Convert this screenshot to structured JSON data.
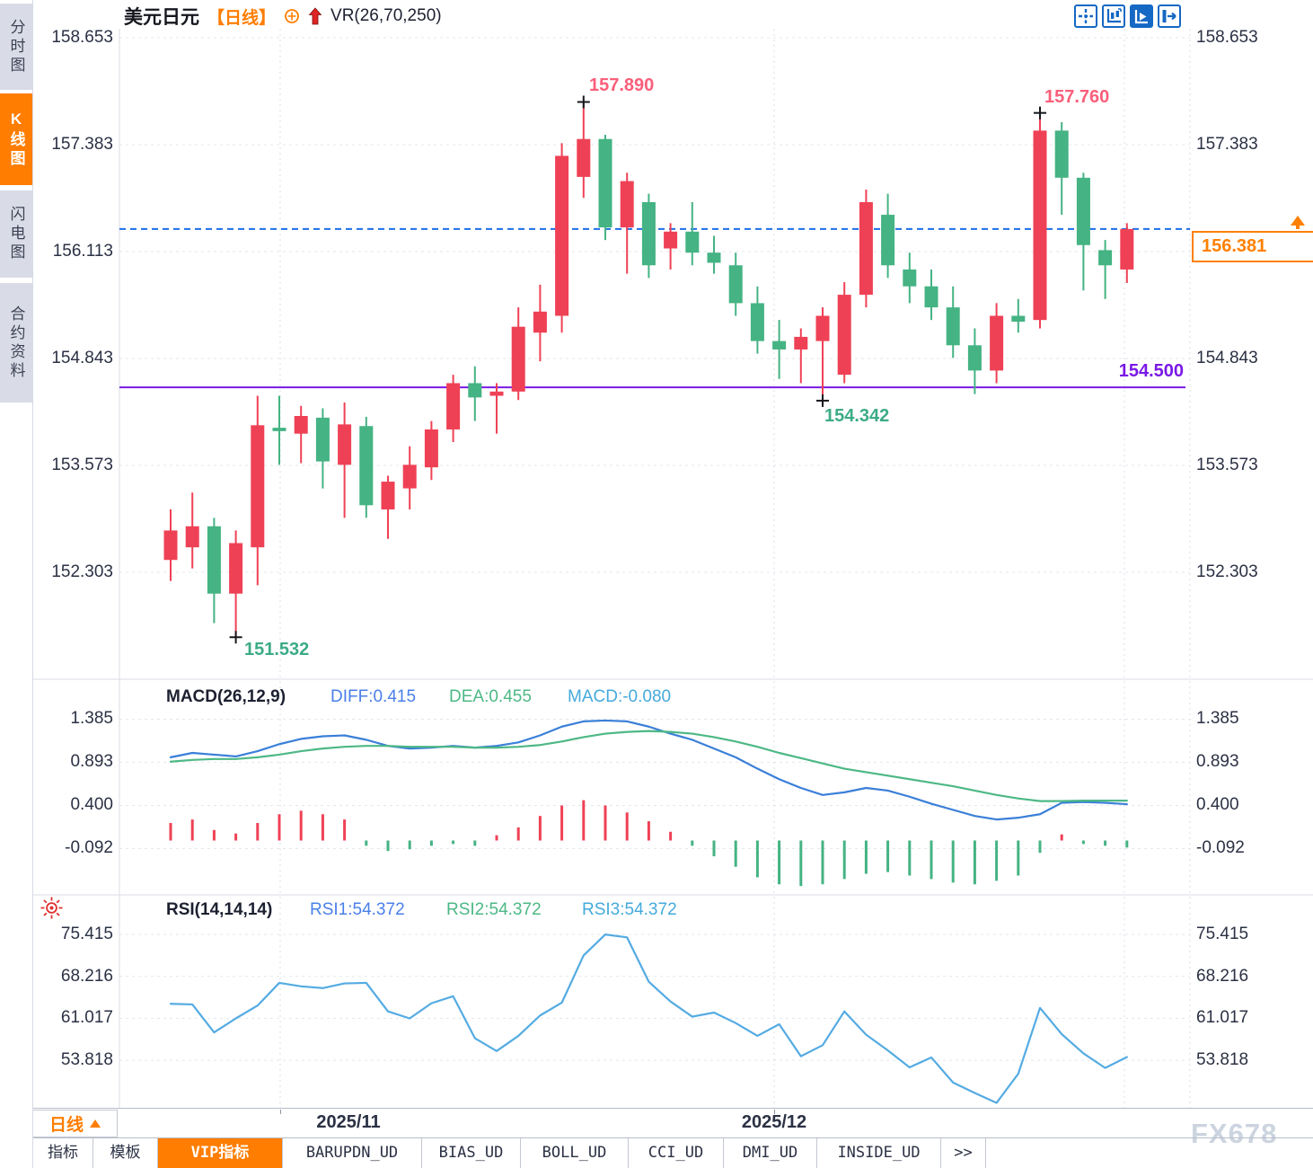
{
  "colors": {
    "accent_orange": "#ff7d00",
    "up": "#ef4155",
    "down": "#45b383",
    "toolbar_blue": "#1568c4",
    "purple": "#7a18e6",
    "dashed_blue": "#1d6ee8",
    "label_pink": "#fa5f7a",
    "label_green": "#3cab87"
  },
  "sidebar": {
    "items": [
      {
        "label": "分时图",
        "active": false
      },
      {
        "label": "K线图",
        "active": true
      },
      {
        "label": "闪电图",
        "active": false
      },
      {
        "label": "合约资料",
        "active": false
      }
    ]
  },
  "header": {
    "symbol": "美元日元",
    "period_tag": "【日线】",
    "vr_label": "VR(26,70,250)"
  },
  "toolbar": {
    "icons": [
      {
        "name": "pan-crosshair"
      },
      {
        "name": "axis-scale"
      },
      {
        "name": "auto-play-scale"
      },
      {
        "name": "jump-to-latest"
      }
    ]
  },
  "main_axis": {
    "ticks": [
      "158.653",
      "157.383",
      "156.113",
      "154.843",
      "153.573",
      "152.303"
    ]
  },
  "macd_panel": {
    "title": "MACD(26,12,9)",
    "diff_label": "DIFF:0.415",
    "dea_label": "DEA:0.455",
    "macd_label": "MACD:-0.080",
    "ticks": [
      "1.385",
      "0.893",
      "0.400",
      "-0.092"
    ]
  },
  "rsi_panel": {
    "title": "RSI(14,14,14)",
    "rsi1_label": "RSI1:54.372",
    "rsi2_label": "RSI2:54.372",
    "rsi3_label": "RSI3:54.372",
    "ticks": [
      "75.415",
      "68.216",
      "61.017",
      "53.818"
    ]
  },
  "annotations": [
    {
      "text": "157.890"
    },
    {
      "text": "157.760"
    },
    {
      "text": "151.532"
    },
    {
      "text": "154.342"
    }
  ],
  "levels": {
    "support": {
      "label": "154.500"
    },
    "current": {
      "label": "156.381"
    }
  },
  "x_axis": {
    "labels": [
      {
        "text": "2025/11",
        "x": 388
      },
      {
        "text": "2025/12",
        "x": 862
      }
    ],
    "gridlines": [
      312,
      862,
      1252
    ]
  },
  "period_selector": {
    "label": "日线"
  },
  "bottom_tabs": [
    {
      "label": "指标",
      "active": false
    },
    {
      "label": "模板",
      "active": false
    },
    {
      "label": "VIP指标",
      "active": true
    },
    {
      "label": "BARUPDN_UD",
      "active": false
    },
    {
      "label": "BIAS_UD",
      "active": false
    },
    {
      "label": "BOLL_UD",
      "active": false
    },
    {
      "label": "CCI_UD",
      "active": false
    },
    {
      "label": "DMI_UD",
      "active": false
    },
    {
      "label": "INSIDE_UD",
      "active": false
    },
    {
      "label": ">>",
      "active": false
    }
  ],
  "watermark": "FX678",
  "chart_data": [
    {
      "type": "candlestick",
      "panel": "main",
      "symbol": "美元日元",
      "period": "日线",
      "ylim": [
        151.3,
        158.653
      ],
      "y_ticks": [
        158.653,
        157.383,
        156.113,
        154.843,
        153.573,
        152.303
      ],
      "up_color": "#ef4155",
      "down_color": "#45b383",
      "candles": [
        [
          152.45,
          153.05,
          152.2,
          152.8
        ],
        [
          152.6,
          153.25,
          152.35,
          152.85
        ],
        [
          152.85,
          152.95,
          151.7,
          152.05
        ],
        [
          152.05,
          152.8,
          151.532,
          152.65
        ],
        [
          152.6,
          154.4,
          152.15,
          154.05
        ],
        [
          154.02,
          154.4,
          153.58,
          153.98
        ],
        [
          153.95,
          154.28,
          153.6,
          154.16
        ],
        [
          154.14,
          154.25,
          153.3,
          153.62
        ],
        [
          153.58,
          154.32,
          152.95,
          154.06
        ],
        [
          154.04,
          154.15,
          152.95,
          153.1
        ],
        [
          153.05,
          153.45,
          152.7,
          153.38
        ],
        [
          153.3,
          153.8,
          153.05,
          153.58
        ],
        [
          153.55,
          154.1,
          153.4,
          154.0
        ],
        [
          154.0,
          154.65,
          153.85,
          154.55
        ],
        [
          154.55,
          154.75,
          154.1,
          154.38
        ],
        [
          154.4,
          154.55,
          153.95,
          154.45
        ],
        [
          154.45,
          155.45,
          154.35,
          155.22
        ],
        [
          155.15,
          155.72,
          154.81,
          155.4
        ],
        [
          155.35,
          157.4,
          155.15,
          157.25
        ],
        [
          157.0,
          157.89,
          156.75,
          157.45
        ],
        [
          157.45,
          157.5,
          156.25,
          156.4
        ],
        [
          156.4,
          157.05,
          155.85,
          156.95
        ],
        [
          156.7,
          156.8,
          155.8,
          155.95
        ],
        [
          156.15,
          156.45,
          155.9,
          156.35
        ],
        [
          156.35,
          156.7,
          155.95,
          156.1
        ],
        [
          156.1,
          156.3,
          155.85,
          155.98
        ],
        [
          155.95,
          156.1,
          155.35,
          155.5
        ],
        [
          155.5,
          155.7,
          154.9,
          155.05
        ],
        [
          155.05,
          155.3,
          154.6,
          154.95
        ],
        [
          154.95,
          155.2,
          154.55,
          155.1
        ],
        [
          155.05,
          155.45,
          154.342,
          155.35
        ],
        [
          154.65,
          155.75,
          154.55,
          155.6
        ],
        [
          155.6,
          156.85,
          155.45,
          156.7
        ],
        [
          156.55,
          156.8,
          155.8,
          155.95
        ],
        [
          155.9,
          156.1,
          155.5,
          155.7
        ],
        [
          155.7,
          155.9,
          155.3,
          155.45
        ],
        [
          155.45,
          155.7,
          154.85,
          155.0
        ],
        [
          155.0,
          155.2,
          154.42,
          154.7
        ],
        [
          154.7,
          155.5,
          154.55,
          155.35
        ],
        [
          155.35,
          155.55,
          155.15,
          155.28
        ],
        [
          155.3,
          157.76,
          155.2,
          157.55
        ],
        [
          157.55,
          157.65,
          156.55,
          156.99
        ],
        [
          156.99,
          157.05,
          155.65,
          156.19
        ],
        [
          156.13,
          156.25,
          155.55,
          155.95
        ],
        [
          155.9,
          156.45,
          155.74,
          156.381
        ]
      ],
      "markers": [
        {
          "idx": 3,
          "price": 151.532,
          "label": "151.532",
          "position": "low"
        },
        {
          "idx": 19,
          "price": 157.89,
          "label": "157.890",
          "position": "high"
        },
        {
          "idx": 30,
          "price": 154.342,
          "label": "154.342",
          "position": "low"
        },
        {
          "idx": 40,
          "price": 157.76,
          "label": "157.760",
          "position": "high"
        }
      ],
      "hlines": [
        {
          "price": 154.5,
          "label": "154.500",
          "style": "solid",
          "color": "#7a18e6"
        },
        {
          "price": 156.381,
          "label": "156.381",
          "style": "dashed",
          "color": "#1d6ee8"
        }
      ]
    },
    {
      "type": "macd",
      "title": "MACD(26,12,9)",
      "diff": 0.415,
      "dea": 0.455,
      "macd": -0.08,
      "y_ticks": [
        1.385,
        0.893,
        0.4,
        -0.092
      ],
      "diff_color": "#3a7fd8",
      "dea_color": "#4db885",
      "diff_series": [
        0.95,
        1.0,
        0.98,
        0.96,
        1.02,
        1.1,
        1.16,
        1.19,
        1.2,
        1.15,
        1.08,
        1.05,
        1.06,
        1.08,
        1.06,
        1.08,
        1.12,
        1.2,
        1.3,
        1.36,
        1.37,
        1.36,
        1.3,
        1.22,
        1.15,
        1.05,
        0.95,
        0.82,
        0.7,
        0.6,
        0.52,
        0.55,
        0.6,
        0.57,
        0.5,
        0.42,
        0.35,
        0.28,
        0.24,
        0.26,
        0.3,
        0.43,
        0.44,
        0.43,
        0.415
      ],
      "dea_series": [
        0.9,
        0.92,
        0.93,
        0.93,
        0.95,
        0.98,
        1.02,
        1.05,
        1.07,
        1.08,
        1.08,
        1.07,
        1.07,
        1.07,
        1.06,
        1.06,
        1.07,
        1.09,
        1.13,
        1.18,
        1.22,
        1.24,
        1.25,
        1.24,
        1.22,
        1.18,
        1.13,
        1.07,
        1.0,
        0.94,
        0.88,
        0.82,
        0.78,
        0.74,
        0.7,
        0.66,
        0.62,
        0.57,
        0.52,
        0.48,
        0.45,
        0.45,
        0.455,
        0.455,
        0.455
      ],
      "hist": [
        0.2,
        0.24,
        0.12,
        0.08,
        0.2,
        0.3,
        0.34,
        0.3,
        0.24,
        -0.06,
        -0.12,
        -0.1,
        -0.06,
        -0.04,
        -0.06,
        0.06,
        0.15,
        0.28,
        0.4,
        0.46,
        0.4,
        0.32,
        0.22,
        0.1,
        -0.06,
        -0.18,
        -0.3,
        -0.42,
        -0.5,
        -0.52,
        -0.5,
        -0.44,
        -0.38,
        -0.36,
        -0.4,
        -0.44,
        -0.48,
        -0.5,
        -0.46,
        -0.4,
        -0.14,
        0.07,
        -0.04,
        -0.06,
        -0.08
      ]
    },
    {
      "type": "line",
      "title": "RSI(14,14,14)",
      "rsi1": 54.372,
      "rsi2": 54.372,
      "rsi3": 54.372,
      "y_ticks": [
        75.415,
        68.216,
        61.017,
        53.818
      ],
      "color": "#54abe2",
      "values": [
        63.5,
        63.4,
        58.6,
        61.0,
        63.2,
        67.1,
        66.5,
        66.2,
        67.0,
        67.1,
        62.2,
        61.0,
        63.6,
        64.8,
        57.6,
        55.4,
        58.0,
        61.5,
        63.7,
        71.8,
        75.4,
        74.9,
        67.3,
        63.9,
        61.3,
        62.0,
        60.2,
        58.0,
        60.0,
        54.5,
        56.4,
        62.2,
        58.2,
        55.5,
        52.6,
        54.3,
        50.0,
        48.2,
        46.5,
        51.5,
        62.8,
        58.3,
        55.0,
        52.5,
        54.372
      ]
    }
  ]
}
